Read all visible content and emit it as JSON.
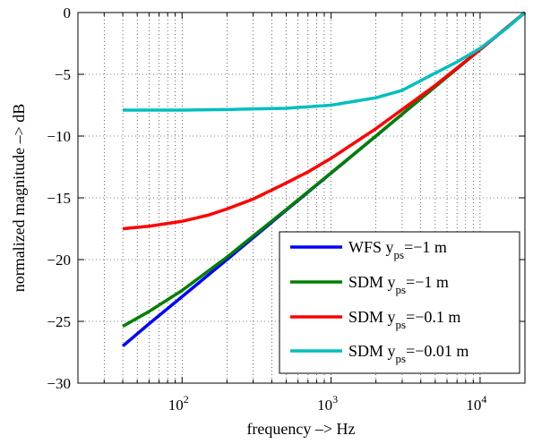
{
  "chart_data": {
    "type": "line",
    "xlabel": "frequency –> Hz",
    "ylabel": "normalized magnitude –> dB",
    "xscale": "log",
    "xlim": [
      20,
      20000
    ],
    "ylim": [
      -30,
      0
    ],
    "grid": true,
    "legend_position": "bottom-right",
    "y_ticks": [
      0,
      -5,
      -10,
      -15,
      -20,
      -25,
      -30
    ],
    "y_tick_labels": [
      "0",
      "−5",
      "−10",
      "−15",
      "−20",
      "−25",
      "−30"
    ],
    "x_ticks": [
      {
        "value": 100,
        "base": "10",
        "exp": "2"
      },
      {
        "value": 1000,
        "base": "10",
        "exp": "3"
      },
      {
        "value": 10000,
        "base": "10",
        "exp": "4"
      }
    ],
    "series": [
      {
        "name": "WFS y_ps=−1 m",
        "label": {
          "pre": "WFS y",
          "sub": "ps",
          "post": "=−1 m"
        },
        "color": "#0000ff",
        "x": [
          40,
          60,
          100,
          200,
          500,
          1000,
          2000,
          5000,
          10000,
          20000
        ],
        "y": [
          -27.0,
          -25.2,
          -23.0,
          -20.0,
          -16.0,
          -13.0,
          -10.0,
          -6.0,
          -3.0,
          0.0
        ]
      },
      {
        "name": "SDM y_ps=−1 m",
        "label": {
          "pre": "SDM y",
          "sub": "ps",
          "post": "=−1 m"
        },
        "color": "#008000",
        "x": [
          40,
          60,
          100,
          200,
          500,
          1000,
          2000,
          5000,
          10000,
          20000
        ],
        "y": [
          -25.4,
          -24.2,
          -22.5,
          -19.8,
          -15.95,
          -12.98,
          -9.99,
          -6.0,
          -3.0,
          0.0
        ]
      },
      {
        "name": "SDM y_ps=−0.1 m",
        "label": {
          "pre": "SDM y",
          "sub": "ps",
          "post": "=−0.1 m"
        },
        "color": "#ff0000",
        "x": [
          40,
          60,
          100,
          150,
          200,
          300,
          500,
          700,
          1000,
          2000,
          5000,
          10000,
          20000
        ],
        "y": [
          -17.5,
          -17.3,
          -16.9,
          -16.4,
          -15.9,
          -15.1,
          -13.8,
          -12.9,
          -11.8,
          -9.4,
          -5.9,
          -3.0,
          0.0
        ]
      },
      {
        "name": "SDM y_ps=−0.01 m",
        "label": {
          "pre": "SDM y",
          "sub": "ps",
          "post": "=−0.01 m"
        },
        "color": "#00bfbf",
        "x": [
          40,
          100,
          200,
          500,
          1000,
          2000,
          3000,
          5000,
          7000,
          10000,
          15000,
          20000
        ],
        "y": [
          -7.9,
          -7.9,
          -7.85,
          -7.75,
          -7.5,
          -6.9,
          -6.3,
          -4.9,
          -4.0,
          -2.9,
          -1.3,
          0.0
        ]
      }
    ]
  }
}
